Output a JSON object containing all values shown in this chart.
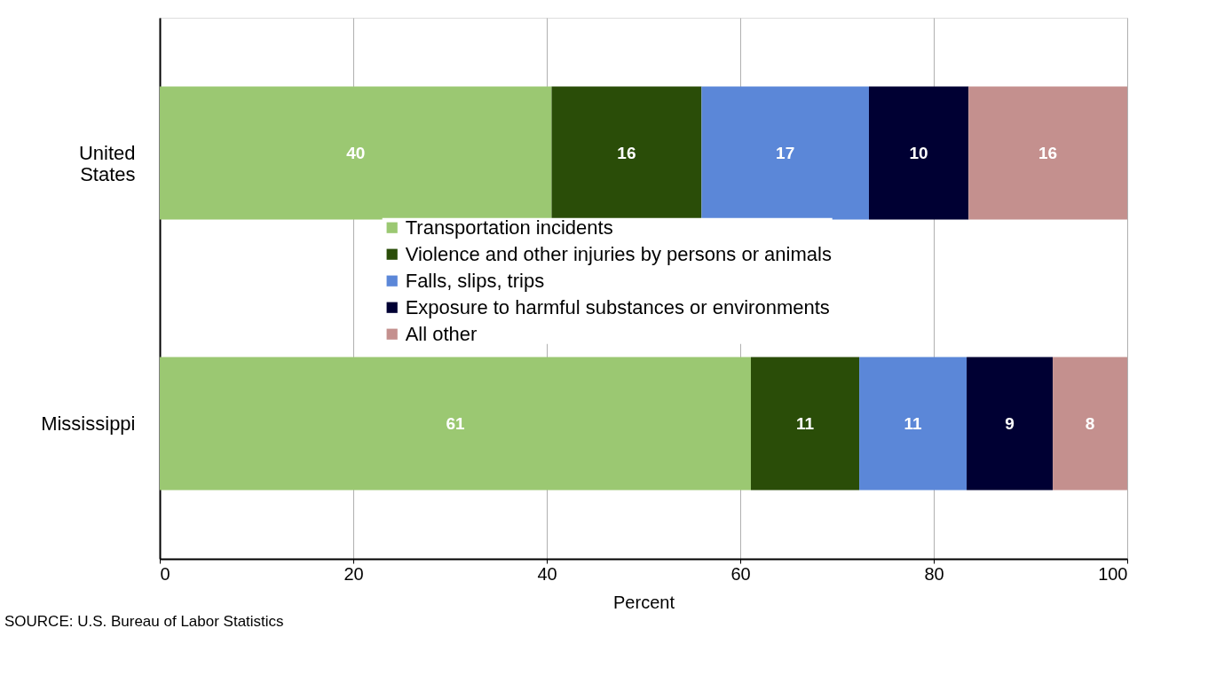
{
  "chart_data": {
    "type": "bar",
    "orientation": "horizontal",
    "stacked": true,
    "categories": [
      "United States",
      "Mississippi"
    ],
    "series": [
      {
        "name": "Transportation incidents",
        "color": "#9bc872",
        "values": [
          40.5,
          61.1
        ],
        "value_labels": [
          "40",
          "61"
        ]
      },
      {
        "name": "Violence and other injuries by persons or animals",
        "color": "#2a4d08",
        "values": [
          15.5,
          11.2
        ],
        "value_labels": [
          "16",
          "11"
        ]
      },
      {
        "name": "Falls, slips, trips",
        "color": "#5b87d8",
        "values": [
          17.3,
          11.1
        ],
        "value_labels": [
          "17",
          "11"
        ]
      },
      {
        "name": "Exposure to harmful substances or environments",
        "color": "#000033",
        "values": [
          10.3,
          8.9
        ],
        "value_labels": [
          "10",
          "9"
        ]
      },
      {
        "name": "All other",
        "color": "#c4908e",
        "values": [
          16.4,
          7.7
        ],
        "value_labels": [
          "16",
          "8"
        ]
      }
    ],
    "xlabel": "Percent",
    "xlim": [
      0,
      100
    ],
    "xticks": [
      0,
      20,
      40,
      60,
      80,
      100
    ],
    "grid": "x",
    "legend": "center",
    "annotations": [
      "SOURCE: U.S. Bureau of Labor Statistics"
    ]
  }
}
